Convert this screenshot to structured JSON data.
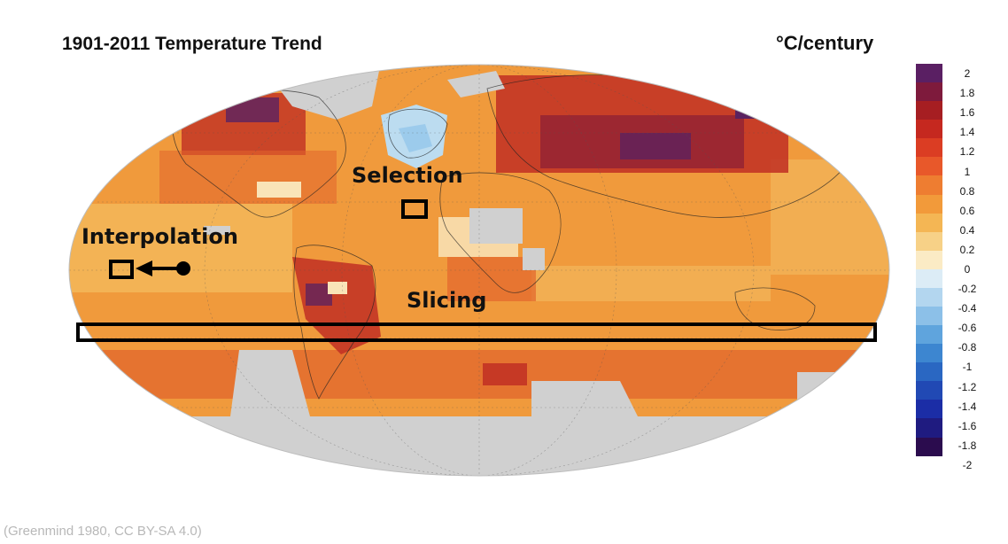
{
  "title": "1901-2011 Temperature Trend",
  "units": "°C/century",
  "credit": "(Greenmind 1980, CC BY-SA 4.0)",
  "annotations": {
    "selection": "Selection",
    "interpolation": "Interpolation",
    "slicing": "Slicing"
  },
  "colorbar": {
    "ticks": [
      "2",
      "1.8",
      "1.6",
      "1.4",
      "1.2",
      "1",
      "0.8",
      "0.6",
      "0.4",
      "0.2",
      "0",
      "-0.2",
      "-0.4",
      "-0.6",
      "-0.8",
      "-1",
      "-1.2",
      "-1.4",
      "-1.6",
      "-1.8",
      "-2"
    ],
    "colors": [
      "#5a1f63",
      "#7e1a3c",
      "#a61e22",
      "#c5281f",
      "#db3d23",
      "#e8582a",
      "#ee7d31",
      "#f29a3a",
      "#f4b654",
      "#f7d187",
      "#fbebc5",
      "#dcecf6",
      "#b3d6ef",
      "#8cc0e8",
      "#5fa4dd",
      "#3d86d0",
      "#2a67c2",
      "#2149b4",
      "#1b2da6",
      "#1f1b80",
      "#2b0c4e"
    ]
  },
  "map_colors": {
    "land_nodata": "#d0d0d0",
    "base": "#f09a3c",
    "warm": "#e2652c",
    "hot": "#c12f23",
    "very_hot": "#8e2036",
    "extreme": "#5a2260",
    "mild": "#f4bd60",
    "neutral": "#f9e4b8",
    "cool": "#bcdcf0"
  }
}
